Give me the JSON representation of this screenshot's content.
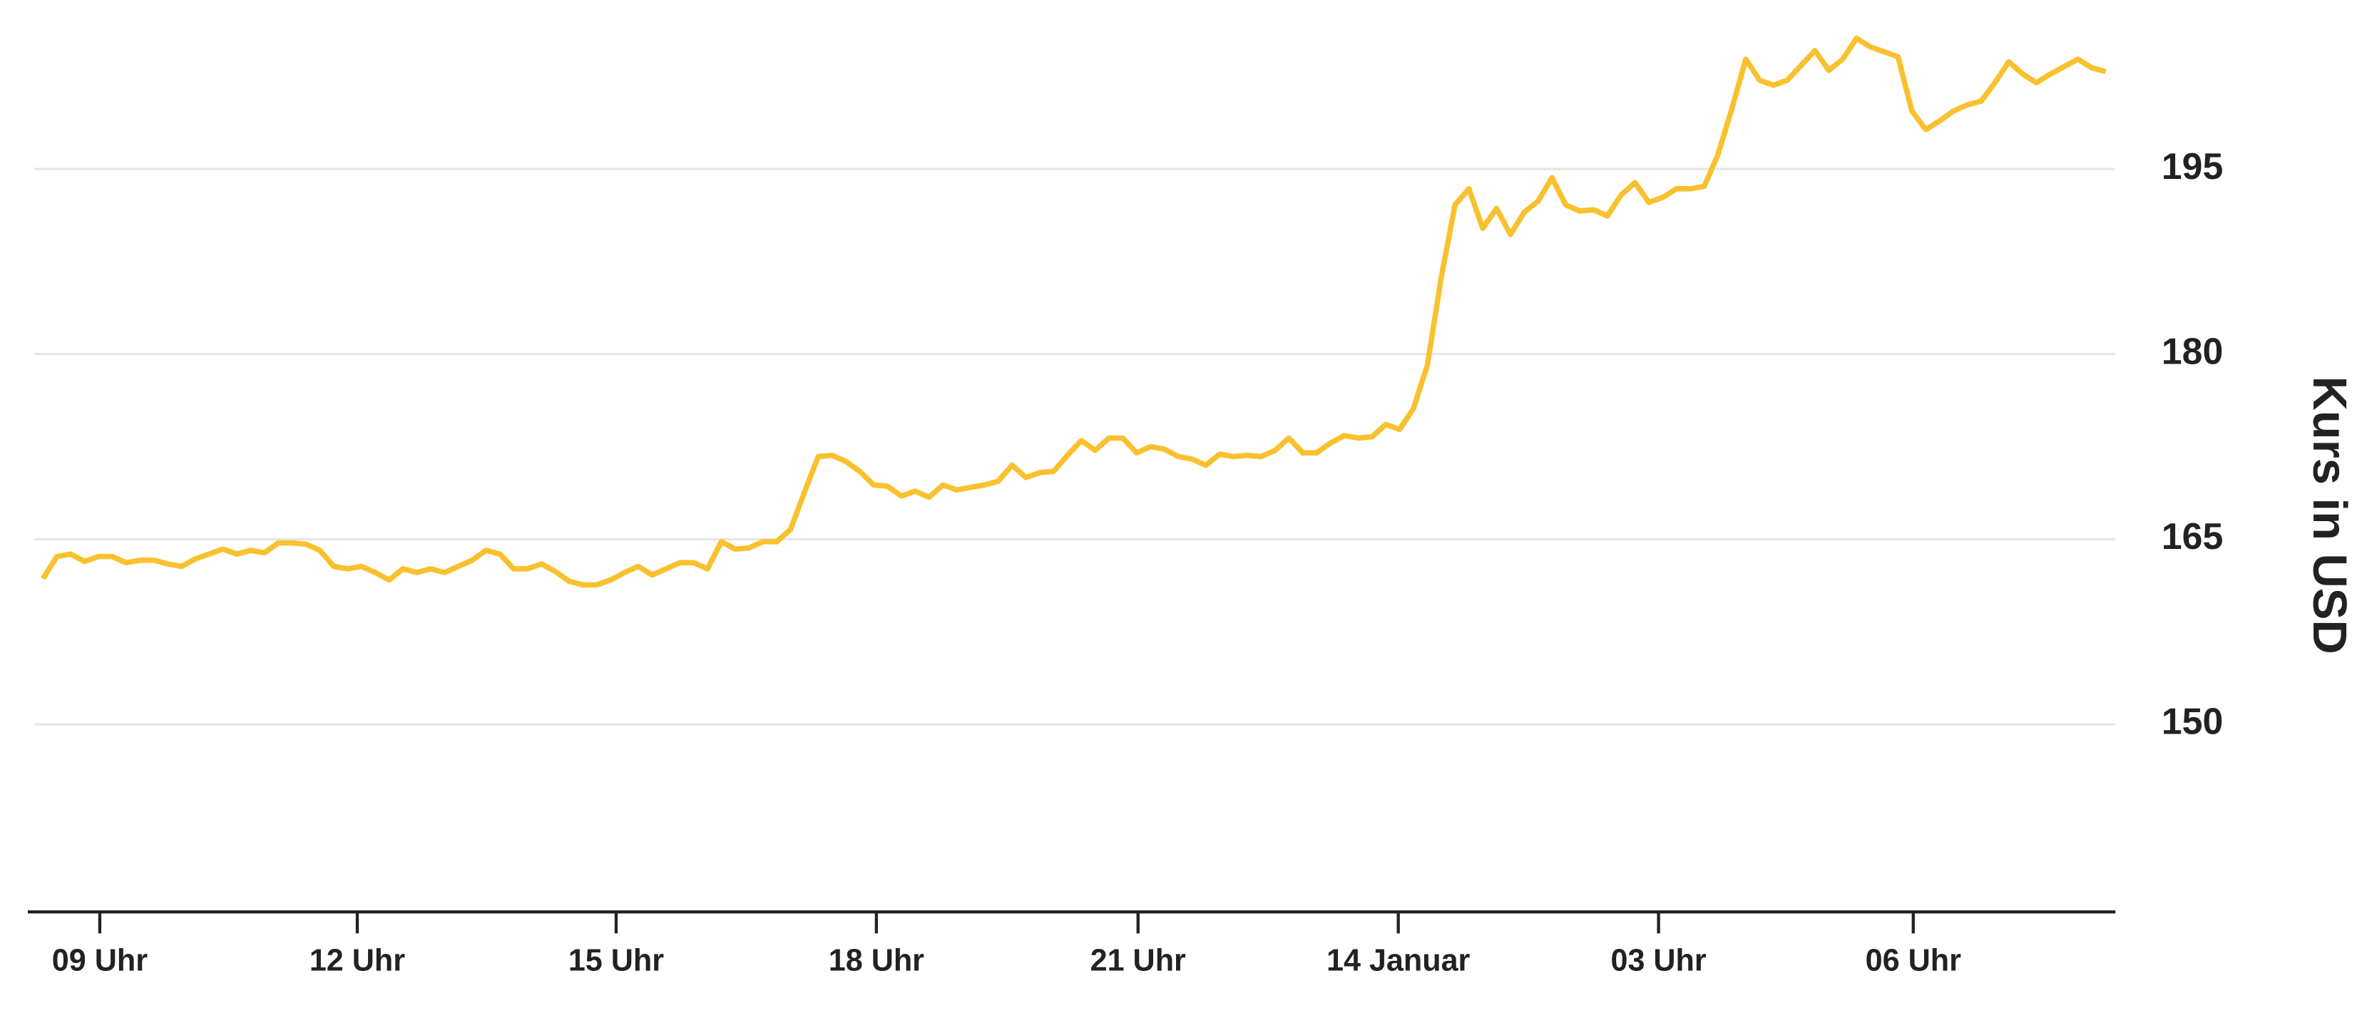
{
  "chart_data": {
    "type": "line",
    "y_label": "Kurs in USD",
    "grid": true,
    "y_axis_side": "right",
    "series": [
      {
        "name": "Kurs",
        "color": "#f9c12e",
        "values": [
          161.8,
          163.6,
          163.8,
          163.2,
          163.6,
          163.6,
          163.1,
          163.3,
          163.3,
          163.0,
          162.8,
          163.4,
          163.8,
          164.2,
          163.8,
          164.1,
          163.9,
          164.7,
          164.7,
          164.6,
          164.1,
          162.8,
          162.6,
          162.8,
          162.3,
          161.7,
          162.6,
          162.3,
          162.6,
          162.3,
          162.8,
          163.3,
          164.1,
          163.8,
          162.6,
          162.6,
          163.0,
          162.4,
          161.6,
          161.3,
          161.3,
          161.7,
          162.3,
          162.8,
          162.1,
          162.6,
          163.1,
          163.1,
          162.6,
          164.8,
          164.2,
          164.3,
          164.8,
          164.8,
          165.8,
          168.8,
          171.7,
          171.8,
          171.3,
          170.5,
          169.4,
          169.3,
          168.5,
          168.9,
          168.4,
          169.4,
          169.0,
          169.2,
          169.4,
          169.7,
          171.0,
          170.0,
          170.4,
          170.5,
          171.8,
          173.0,
          172.2,
          173.2,
          173.2,
          172.0,
          172.5,
          172.3,
          171.7,
          171.5,
          171.0,
          171.9,
          171.7,
          171.8,
          171.7,
          172.2,
          173.2,
          172.0,
          172.0,
          172.8,
          173.4,
          173.2,
          173.3,
          174.3,
          173.9,
          175.6,
          179.1,
          186.2,
          192.1,
          193.4,
          190.2,
          191.8,
          189.7,
          191.5,
          192.4,
          194.3,
          192.1,
          191.6,
          191.7,
          191.2,
          192.9,
          193.9,
          192.3,
          192.7,
          193.4,
          193.4,
          193.6,
          196.2,
          199.9,
          203.9,
          202.2,
          201.8,
          202.2,
          203.4,
          204.6,
          203.0,
          203.9,
          205.6,
          204.9,
          204.5,
          204.1,
          199.7,
          198.2,
          198.9,
          199.7,
          200.2,
          200.5,
          202.0,
          203.7,
          202.7,
          202.0,
          202.7,
          203.3,
          203.9,
          203.2,
          202.9
        ]
      }
    ],
    "xlim": [
      -1.1,
      149.7
    ],
    "xticks": [
      {
        "value": 4.1,
        "label": "09 Uhr"
      },
      {
        "value": 22.7,
        "label": "12 Uhr"
      },
      {
        "value": 41.4,
        "label": "15 Uhr"
      },
      {
        "value": 60.2,
        "label": "18 Uhr"
      },
      {
        "value": 79.1,
        "label": "21 Uhr"
      },
      {
        "value": 97.9,
        "label": "14 Januar"
      },
      {
        "value": 116.7,
        "label": "03 Uhr"
      },
      {
        "value": 135.1,
        "label": "06 Uhr"
      }
    ],
    "ylim": [
      134.8,
      208.7
    ],
    "yticks": [
      150,
      165,
      180,
      195
    ]
  }
}
